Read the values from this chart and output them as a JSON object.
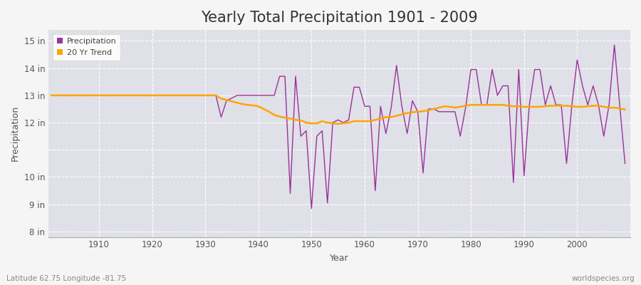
{
  "title": "Yearly Total Precipitation 1901 - 2009",
  "xlabel": "Year",
  "ylabel": "Precipitation",
  "subtitle_left": "Latitude 62.75 Longitude -81.75",
  "subtitle_right": "worldspecies.org",
  "years": [
    1901,
    1902,
    1903,
    1904,
    1905,
    1906,
    1907,
    1908,
    1909,
    1910,
    1911,
    1912,
    1913,
    1914,
    1915,
    1916,
    1917,
    1918,
    1919,
    1920,
    1921,
    1922,
    1923,
    1924,
    1925,
    1926,
    1927,
    1928,
    1929,
    1930,
    1931,
    1932,
    1933,
    1934,
    1935,
    1936,
    1937,
    1938,
    1939,
    1940,
    1941,
    1942,
    1943,
    1944,
    1945,
    1946,
    1947,
    1948,
    1949,
    1950,
    1951,
    1952,
    1953,
    1954,
    1955,
    1956,
    1957,
    1958,
    1959,
    1960,
    1961,
    1962,
    1963,
    1964,
    1965,
    1966,
    1967,
    1968,
    1969,
    1970,
    1971,
    1972,
    1973,
    1974,
    1975,
    1976,
    1977,
    1978,
    1979,
    1980,
    1981,
    1982,
    1983,
    1984,
    1985,
    1986,
    1987,
    1988,
    1989,
    1990,
    1991,
    1992,
    1993,
    1994,
    1995,
    1996,
    1997,
    1998,
    1999,
    2000,
    2001,
    2002,
    2003,
    2004,
    2005,
    2006,
    2007,
    2008,
    2009
  ],
  "precip": [
    13.0,
    13.0,
    13.0,
    13.0,
    13.0,
    13.0,
    13.0,
    13.0,
    13.0,
    13.0,
    13.0,
    13.0,
    13.0,
    13.0,
    13.0,
    13.0,
    13.0,
    13.0,
    13.0,
    13.0,
    13.0,
    13.0,
    13.0,
    13.0,
    13.0,
    13.0,
    13.0,
    13.0,
    13.0,
    13.0,
    13.0,
    13.0,
    12.2,
    12.8,
    12.9,
    13.0,
    13.0,
    13.0,
    13.0,
    13.0,
    13.0,
    13.0,
    13.0,
    13.7,
    13.7,
    9.4,
    13.7,
    11.5,
    11.7,
    8.85,
    11.5,
    11.7,
    9.05,
    12.0,
    12.1,
    12.0,
    12.1,
    13.3,
    13.3,
    12.6,
    12.6,
    9.5,
    12.6,
    11.6,
    12.55,
    14.1,
    12.6,
    11.6,
    12.8,
    12.4,
    10.15,
    12.5,
    12.5,
    12.4,
    12.4,
    12.4,
    12.4,
    11.5,
    12.55,
    13.95,
    13.95,
    12.65,
    12.65,
    13.95,
    13.0,
    13.35,
    13.35,
    9.8,
    13.95,
    10.05,
    12.65,
    13.95,
    13.95,
    12.65,
    13.35,
    12.65,
    12.65,
    10.5,
    12.65,
    14.3,
    13.35,
    12.65,
    13.35,
    12.65,
    11.5,
    12.65,
    14.85,
    12.65,
    10.5
  ],
  "trend": [
    13.0,
    13.0,
    13.0,
    13.0,
    13.0,
    13.0,
    13.0,
    13.0,
    13.0,
    13.0,
    13.0,
    13.0,
    13.0,
    13.0,
    13.0,
    13.0,
    13.0,
    13.0,
    13.0,
    13.0,
    13.0,
    13.0,
    13.0,
    13.0,
    13.0,
    13.0,
    13.0,
    13.0,
    13.0,
    13.0,
    13.0,
    13.0,
    12.88,
    12.83,
    12.78,
    12.73,
    12.68,
    12.65,
    12.63,
    12.6,
    12.5,
    12.4,
    12.28,
    12.22,
    12.18,
    12.15,
    12.1,
    12.08,
    12.0,
    11.97,
    11.97,
    12.05,
    12.0,
    11.98,
    11.95,
    11.98,
    12.0,
    12.05,
    12.05,
    12.05,
    12.05,
    12.1,
    12.15,
    12.2,
    12.2,
    12.25,
    12.3,
    12.35,
    12.38,
    12.4,
    12.42,
    12.45,
    12.5,
    12.55,
    12.6,
    12.58,
    12.55,
    12.58,
    12.62,
    12.65,
    12.65,
    12.65,
    12.65,
    12.65,
    12.65,
    12.65,
    12.62,
    12.6,
    12.6,
    12.58,
    12.58,
    12.58,
    12.58,
    12.6,
    12.62,
    12.62,
    12.62,
    12.62,
    12.6,
    12.58,
    12.58,
    12.6,
    12.62,
    12.62,
    12.58,
    12.55,
    12.55,
    12.52,
    12.48
  ],
  "precip_color": "#993399",
  "trend_color": "#FFA500",
  "plot_bg_color": "#E0E0E8",
  "fig_bg_color": "#F5F5F5",
  "grid_color": "#FFFFFF",
  "grid_linestyle": "--",
  "ylim": [
    7.8,
    15.4
  ],
  "xlim": [
    1900.5,
    2010
  ],
  "yticks": [
    8,
    9,
    10,
    11,
    12,
    13,
    14,
    15
  ],
  "ytick_labels": [
    "8 in",
    "9 in",
    "10 in",
    "",
    "12 in",
    "13 in",
    "14 in",
    "15 in"
  ],
  "xticks": [
    1910,
    1920,
    1930,
    1940,
    1950,
    1960,
    1970,
    1980,
    1990,
    2000
  ],
  "title_fontsize": 15,
  "axis_label_fontsize": 9,
  "tick_fontsize": 8.5
}
